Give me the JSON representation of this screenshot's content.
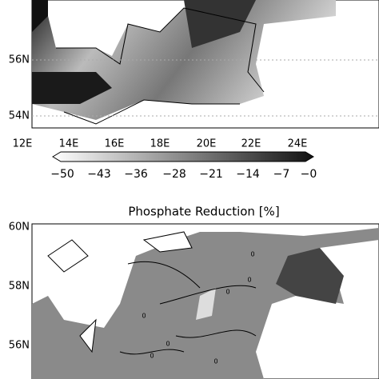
{
  "top_panel": {
    "y_labels": [
      "56N",
      "54N"
    ],
    "x_labels": [
      "12E",
      "14E",
      "16E",
      "18E",
      "20E",
      "22E",
      "24E"
    ]
  },
  "colorbar": {
    "labels": [
      "−50",
      "−43",
      "−36",
      "−28",
      "−21",
      "−14",
      "−7",
      "−0"
    ]
  },
  "bottom_panel": {
    "title": "Phosphate Reduction [%]",
    "y_labels": [
      "60N",
      "58N",
      "56N"
    ],
    "contour_labels": [
      "0",
      "0",
      "0",
      "0",
      "0",
      "0",
      "0"
    ]
  }
}
